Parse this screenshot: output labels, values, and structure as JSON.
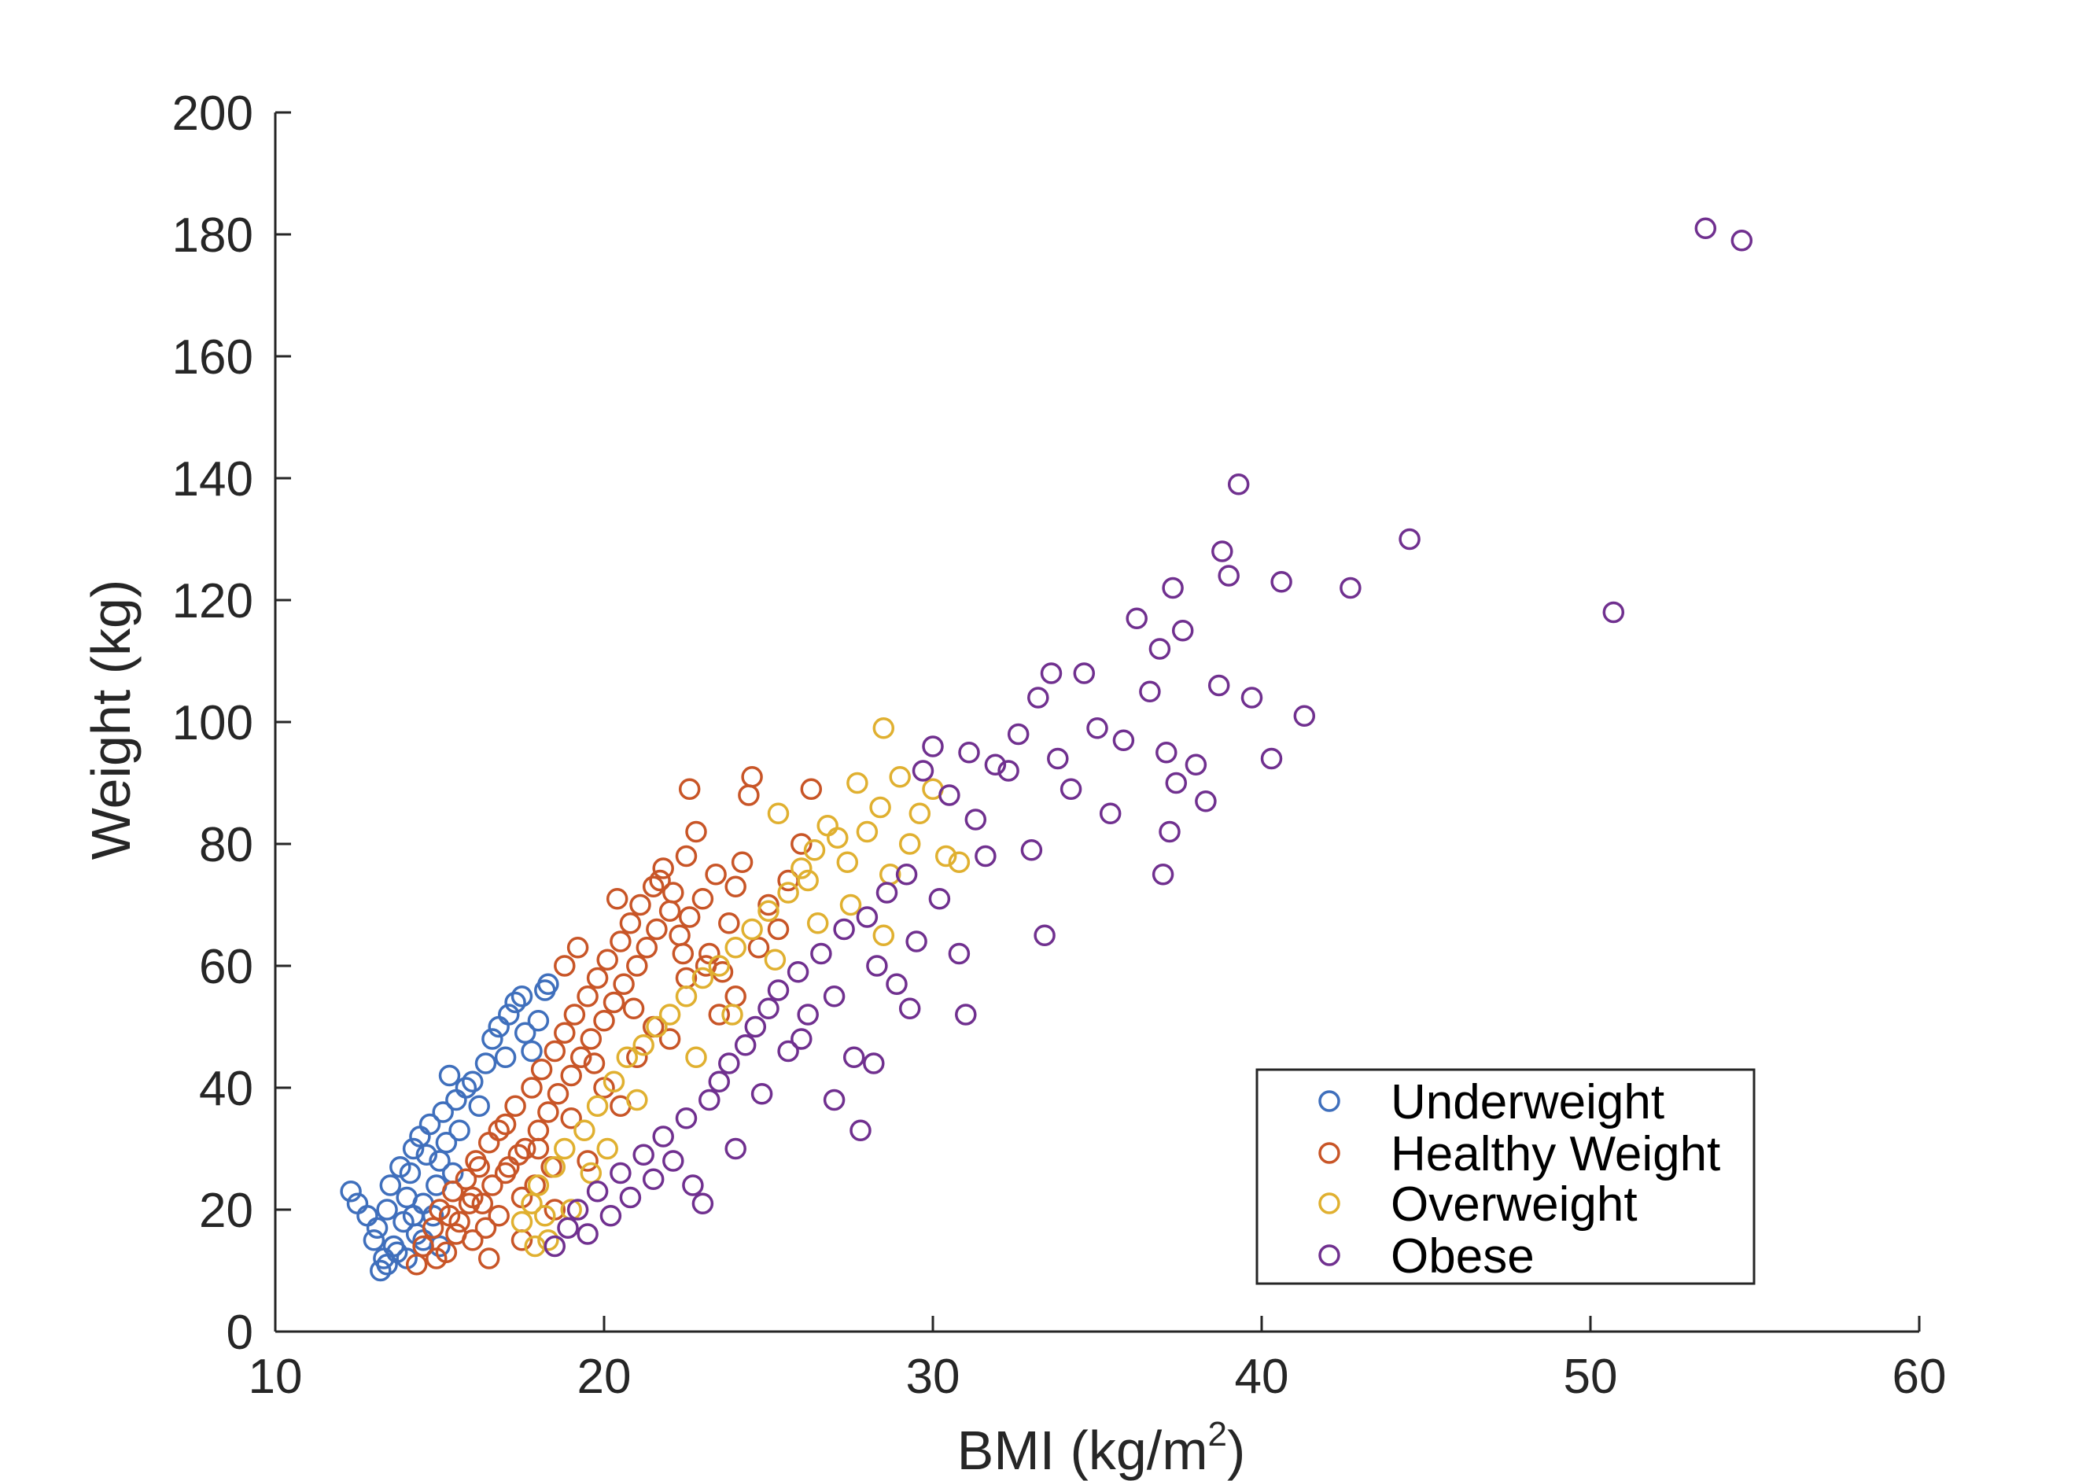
{
  "chart_data": {
    "type": "scatter",
    "title": "",
    "xlabel": "BMI (kg/m",
    "xlabel_sup": "2",
    "xlabel_end": ")",
    "ylabel": "Weight (kg)",
    "xlim": [
      10,
      60
    ],
    "ylim": [
      0,
      200
    ],
    "xticks": [
      "10",
      "20",
      "30",
      "40",
      "50",
      "60"
    ],
    "yticks": [
      "0",
      "20",
      "40",
      "60",
      "80",
      "100",
      "120",
      "140",
      "160",
      "180",
      "200"
    ],
    "grid": false,
    "legend_position": "bottom-right",
    "series": [
      {
        "name": "Underweight",
        "color": "#3f6fbc",
        "points": [
          [
            12.3,
            23
          ],
          [
            12.5,
            21
          ],
          [
            12.8,
            19
          ],
          [
            13.0,
            15
          ],
          [
            13.1,
            17
          ],
          [
            13.2,
            10
          ],
          [
            13.3,
            12
          ],
          [
            13.4,
            20
          ],
          [
            13.5,
            24
          ],
          [
            13.6,
            14
          ],
          [
            13.8,
            27
          ],
          [
            13.9,
            18
          ],
          [
            14.0,
            22
          ],
          [
            14.1,
            26
          ],
          [
            14.2,
            30
          ],
          [
            14.3,
            16
          ],
          [
            14.4,
            32
          ],
          [
            14.5,
            21
          ],
          [
            14.6,
            29
          ],
          [
            14.7,
            34
          ],
          [
            14.8,
            19
          ],
          [
            14.9,
            24
          ],
          [
            15.0,
            28
          ],
          [
            15.1,
            36
          ],
          [
            15.2,
            31
          ],
          [
            15.3,
            42
          ],
          [
            15.4,
            26
          ],
          [
            15.5,
            38
          ],
          [
            15.6,
            33
          ],
          [
            15.8,
            40
          ],
          [
            16.0,
            41
          ],
          [
            16.2,
            37
          ],
          [
            16.4,
            44
          ],
          [
            16.6,
            48
          ],
          [
            16.8,
            50
          ],
          [
            17.0,
            45
          ],
          [
            17.1,
            52
          ],
          [
            17.3,
            54
          ],
          [
            17.5,
            55
          ],
          [
            17.6,
            49
          ],
          [
            17.8,
            46
          ],
          [
            18.0,
            51
          ],
          [
            18.2,
            56
          ],
          [
            18.3,
            57
          ],
          [
            14.0,
            12
          ],
          [
            13.7,
            13
          ],
          [
            14.5,
            15
          ],
          [
            15.0,
            14
          ],
          [
            14.2,
            19
          ],
          [
            13.4,
            11
          ]
        ]
      },
      {
        "name": "Healthy Weight",
        "color": "#c85527",
        "points": [
          [
            14.3,
            11
          ],
          [
            14.5,
            14
          ],
          [
            14.8,
            17
          ],
          [
            15.0,
            20
          ],
          [
            15.2,
            13
          ],
          [
            15.4,
            23
          ],
          [
            15.6,
            18
          ],
          [
            15.8,
            25
          ],
          [
            16.0,
            15
          ],
          [
            16.1,
            28
          ],
          [
            16.3,
            21
          ],
          [
            16.5,
            31
          ],
          [
            16.6,
            24
          ],
          [
            16.8,
            19
          ],
          [
            17.0,
            34
          ],
          [
            17.1,
            27
          ],
          [
            17.3,
            37
          ],
          [
            17.5,
            22
          ],
          [
            17.6,
            30
          ],
          [
            17.8,
            40
          ],
          [
            18.0,
            33
          ],
          [
            18.1,
            43
          ],
          [
            18.3,
            36
          ],
          [
            18.5,
            46
          ],
          [
            18.6,
            39
          ],
          [
            18.8,
            49
          ],
          [
            19.0,
            42
          ],
          [
            19.1,
            52
          ],
          [
            19.3,
            45
          ],
          [
            19.5,
            55
          ],
          [
            19.6,
            48
          ],
          [
            19.8,
            58
          ],
          [
            20.0,
            51
          ],
          [
            20.1,
            61
          ],
          [
            20.3,
            54
          ],
          [
            20.5,
            64
          ],
          [
            20.6,
            57
          ],
          [
            20.8,
            67
          ],
          [
            21.0,
            60
          ],
          [
            21.1,
            70
          ],
          [
            21.3,
            63
          ],
          [
            21.5,
            73
          ],
          [
            21.6,
            66
          ],
          [
            21.8,
            76
          ],
          [
            22.0,
            69
          ],
          [
            22.1,
            72
          ],
          [
            22.3,
            65
          ],
          [
            22.5,
            78
          ],
          [
            22.6,
            68
          ],
          [
            22.8,
            82
          ],
          [
            23.0,
            71
          ],
          [
            23.2,
            62
          ],
          [
            23.4,
            75
          ],
          [
            23.6,
            59
          ],
          [
            23.8,
            67
          ],
          [
            24.0,
            73
          ],
          [
            24.2,
            77
          ],
          [
            24.4,
            88
          ],
          [
            24.5,
            91
          ],
          [
            22.6,
            89
          ],
          [
            24.7,
            63
          ],
          [
            25.0,
            70
          ],
          [
            25.3,
            66
          ],
          [
            25.6,
            74
          ],
          [
            26.0,
            80
          ],
          [
            26.3,
            89
          ],
          [
            24.0,
            55
          ],
          [
            23.5,
            52
          ],
          [
            22.0,
            48
          ],
          [
            21.0,
            45
          ],
          [
            20.0,
            40
          ],
          [
            19.0,
            35
          ],
          [
            18.0,
            30
          ],
          [
            17.0,
            26
          ],
          [
            16.0,
            22
          ],
          [
            15.5,
            16
          ],
          [
            16.5,
            12
          ],
          [
            17.5,
            15
          ],
          [
            18.5,
            20
          ],
          [
            19.5,
            28
          ],
          [
            20.5,
            37
          ],
          [
            21.5,
            50
          ],
          [
            22.5,
            58
          ],
          [
            16.2,
            27
          ],
          [
            16.8,
            33
          ],
          [
            17.4,
            29
          ],
          [
            15.9,
            21
          ],
          [
            15.3,
            19
          ],
          [
            14.9,
            12
          ],
          [
            16.4,
            17
          ],
          [
            18.8,
            60
          ],
          [
            19.2,
            63
          ],
          [
            20.4,
            71
          ],
          [
            21.7,
            74
          ],
          [
            17.9,
            24
          ],
          [
            18.4,
            27
          ],
          [
            19.7,
            44
          ],
          [
            20.9,
            53
          ],
          [
            22.4,
            62
          ],
          [
            23.1,
            60
          ]
        ]
      },
      {
        "name": "Overweight",
        "color": "#e0b030",
        "points": [
          [
            17.5,
            18
          ],
          [
            17.8,
            21
          ],
          [
            18.0,
            24
          ],
          [
            18.3,
            15
          ],
          [
            18.5,
            27
          ],
          [
            18.8,
            30
          ],
          [
            19.0,
            20
          ],
          [
            19.4,
            33
          ],
          [
            19.8,
            37
          ],
          [
            20.3,
            41
          ],
          [
            20.7,
            45
          ],
          [
            21.2,
            47
          ],
          [
            21.6,
            50
          ],
          [
            22.0,
            52
          ],
          [
            22.5,
            55
          ],
          [
            23.0,
            58
          ],
          [
            23.5,
            60
          ],
          [
            24.0,
            63
          ],
          [
            24.5,
            66
          ],
          [
            25.0,
            69
          ],
          [
            25.3,
            85
          ],
          [
            25.6,
            72
          ],
          [
            26.0,
            76
          ],
          [
            26.4,
            79
          ],
          [
            26.8,
            83
          ],
          [
            27.1,
            81
          ],
          [
            27.4,
            77
          ],
          [
            27.7,
            90
          ],
          [
            28.0,
            82
          ],
          [
            28.4,
            86
          ],
          [
            28.5,
            99
          ],
          [
            28.7,
            75
          ],
          [
            29.0,
            91
          ],
          [
            29.3,
            80
          ],
          [
            29.6,
            85
          ],
          [
            30.0,
            89
          ],
          [
            30.4,
            78
          ],
          [
            30.8,
            77
          ],
          [
            28.5,
            65
          ],
          [
            27.5,
            70
          ],
          [
            26.5,
            67
          ],
          [
            21.0,
            38
          ],
          [
            19.6,
            26
          ],
          [
            18.2,
            19
          ],
          [
            17.9,
            14
          ],
          [
            20.1,
            30
          ],
          [
            22.8,
            45
          ],
          [
            23.9,
            52
          ],
          [
            25.2,
            61
          ],
          [
            26.2,
            74
          ]
        ]
      },
      {
        "name": "Obese",
        "color": "#70308f",
        "points": [
          [
            18.5,
            14
          ],
          [
            18.9,
            17
          ],
          [
            19.2,
            20
          ],
          [
            19.5,
            16
          ],
          [
            19.8,
            23
          ],
          [
            20.2,
            19
          ],
          [
            20.5,
            26
          ],
          [
            20.8,
            22
          ],
          [
            21.2,
            29
          ],
          [
            21.5,
            25
          ],
          [
            21.8,
            32
          ],
          [
            22.1,
            28
          ],
          [
            22.5,
            35
          ],
          [
            22.7,
            24
          ],
          [
            23.0,
            21
          ],
          [
            23.2,
            38
          ],
          [
            23.5,
            41
          ],
          [
            23.8,
            44
          ],
          [
            24.0,
            30
          ],
          [
            24.3,
            47
          ],
          [
            24.6,
            50
          ],
          [
            24.8,
            39
          ],
          [
            25.0,
            53
          ],
          [
            25.3,
            56
          ],
          [
            25.6,
            46
          ],
          [
            25.9,
            59
          ],
          [
            26.2,
            52
          ],
          [
            26.6,
            62
          ],
          [
            27.0,
            55
          ],
          [
            27.3,
            66
          ],
          [
            27.6,
            45
          ],
          [
            27.8,
            33
          ],
          [
            28.0,
            68
          ],
          [
            28.3,
            60
          ],
          [
            28.6,
            72
          ],
          [
            28.9,
            57
          ],
          [
            29.2,
            75
          ],
          [
            29.5,
            64
          ],
          [
            29.7,
            92
          ],
          [
            30.0,
            96
          ],
          [
            30.2,
            71
          ],
          [
            30.5,
            88
          ],
          [
            30.8,
            62
          ],
          [
            31.1,
            95
          ],
          [
            31.3,
            84
          ],
          [
            31.6,
            78
          ],
          [
            31.9,
            93
          ],
          [
            32.3,
            92
          ],
          [
            32.6,
            98
          ],
          [
            33.0,
            79
          ],
          [
            33.2,
            104
          ],
          [
            33.4,
            65
          ],
          [
            33.6,
            108
          ],
          [
            33.8,
            94
          ],
          [
            34.2,
            89
          ],
          [
            34.6,
            108
          ],
          [
            35.0,
            99
          ],
          [
            35.4,
            85
          ],
          [
            35.8,
            97
          ],
          [
            36.2,
            117
          ],
          [
            36.6,
            105
          ],
          [
            36.9,
            112
          ],
          [
            37.1,
            95
          ],
          [
            37.3,
            122
          ],
          [
            37.4,
            90
          ],
          [
            37.6,
            115
          ],
          [
            38.0,
            93
          ],
          [
            38.3,
            87
          ],
          [
            38.7,
            106
          ],
          [
            38.8,
            128
          ],
          [
            39.0,
            124
          ],
          [
            39.3,
            139
          ],
          [
            39.7,
            104
          ],
          [
            40.3,
            94
          ],
          [
            40.6,
            123
          ],
          [
            41.3,
            101
          ],
          [
            42.7,
            122
          ],
          [
            44.5,
            130
          ],
          [
            50.7,
            118
          ],
          [
            53.5,
            181
          ],
          [
            54.6,
            179
          ],
          [
            37.0,
            75
          ],
          [
            37.2,
            82
          ],
          [
            26.0,
            48
          ],
          [
            27.0,
            38
          ],
          [
            28.2,
            44
          ],
          [
            29.3,
            53
          ],
          [
            31.0,
            52
          ]
        ]
      }
    ]
  }
}
